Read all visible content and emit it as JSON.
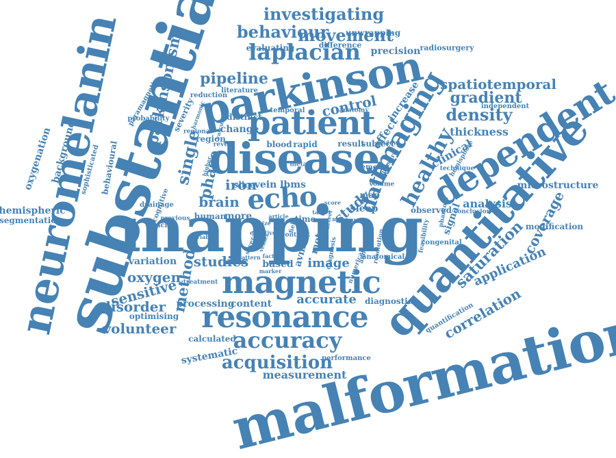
{
  "color": "#4682b4",
  "words": [
    "mapping",
    "substantia",
    "malformation",
    "quantitative",
    "neuromelanin",
    "disease",
    "parkinson",
    "dependent",
    "patient",
    "magnetic",
    "resonance",
    "echo",
    "imaging",
    "accuracy",
    "laplacian",
    "healthy",
    "acquisition",
    "behaviour",
    "investigating",
    "movement",
    "pipeline",
    "parkinsonism",
    "spatiotemporal",
    "gradient",
    "density",
    "control",
    "single",
    "phase",
    "data",
    "saturation",
    "coverage",
    "correlation",
    "application",
    "studies",
    "method",
    "oxygen",
    "sensitive",
    "disorder",
    "volunteer",
    "iron",
    "brain",
    "study",
    "image",
    "content",
    "accurate",
    "processing",
    "measurement",
    "evaluating",
    "unwrapping",
    "precision",
    "radiosurgery",
    "difference",
    "thickness",
    "clinical",
    "analysis",
    "microstructure",
    "modification",
    "hemispheric",
    "segmentation",
    "oxygenation",
    "background",
    "effect",
    "increase",
    "motor",
    "calculated",
    "systematic",
    "optimising",
    "variation",
    "result",
    "subject",
    "rapid",
    "blood",
    "change",
    "distinct",
    "region",
    "lbms",
    "vein",
    "slice",
    "human",
    "more",
    "time",
    "based",
    "avms",
    "sleep",
    "map",
    "signal",
    "diagnostic",
    "performance",
    "observed",
    "congenital",
    "quantification",
    "independent",
    "anatomical",
    "behavioural",
    "cognitive",
    "spacing",
    "drainage",
    "sophisticated",
    "severity",
    "probability",
    "paramagnetic",
    "reduction",
    "literature",
    "temporal",
    "anatomy",
    "regional",
    "removal",
    "volume",
    "conclusion",
    "phantom",
    "feasibility",
    "hemisphere",
    "technique",
    "previous",
    "treatment",
    "several",
    "factor",
    "pattern",
    "marker",
    "tissue",
    "field",
    "score",
    "detect",
    "anomalies",
    "resolution",
    "numerical",
    "contrast",
    "harmonic",
    "vascular",
    "reveal",
    "review",
    "measure",
    "meta",
    "higher",
    "article",
    "size",
    "variable",
    "vessel",
    "diagnosis",
    "target",
    "noise",
    "effective"
  ]
}
